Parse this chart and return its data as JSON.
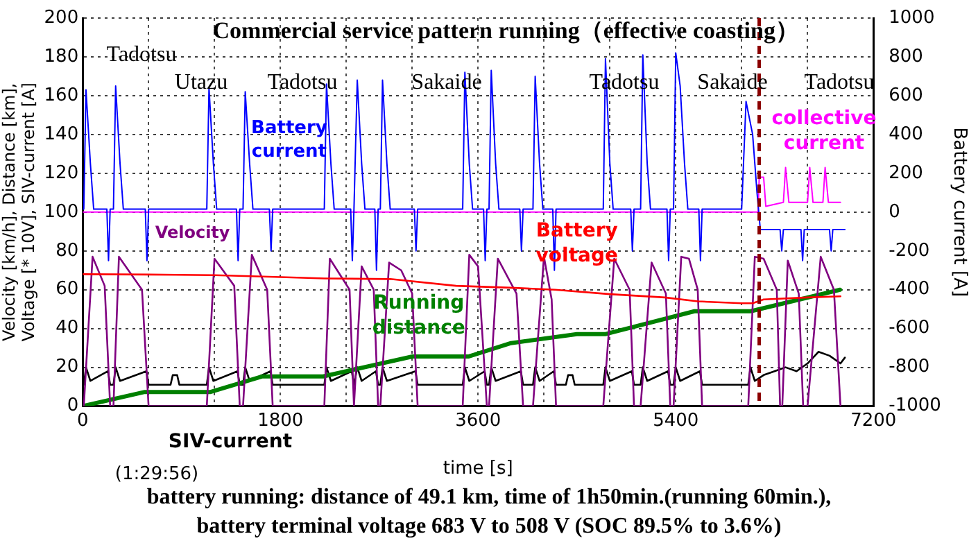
{
  "chart_data": {
    "type": "line",
    "title": "Commercial service pattern running（effective coasting）",
    "xlabel": "time [s]",
    "ylabel": "Velocity [km/h], Distance [km], Voltage [* 10V], SIV-current [A]",
    "y2label": "Battery current [A]",
    "xlim": [
      0,
      7200
    ],
    "xticks": [
      0,
      {
        "value": 600,
        "label": null
      },
      {
        "value": 1200,
        "label": null
      },
      1800,
      {
        "value": 2400,
        "label": null
      },
      {
        "value": 3000,
        "label": null
      },
      3600,
      {
        "value": 4200,
        "label": null
      },
      {
        "value": 4800,
        "label": null
      },
      5400,
      {
        "value": 6000,
        "label": null
      },
      {
        "value": 6600,
        "label": null
      },
      7200
    ],
    "ylim": [
      0,
      200
    ],
    "yticks": [
      0,
      20,
      40,
      60,
      80,
      100,
      120,
      140,
      160,
      180,
      200
    ],
    "y2lim": [
      -1000,
      1000
    ],
    "y2ticks": [
      -1000,
      -800,
      -600,
      -400,
      -200,
      0,
      200,
      400,
      600,
      800,
      1000
    ],
    "grid": true,
    "legend": false,
    "marker": "none",
    "line_style": "solid",
    "ref_lines": [
      {
        "axis": "x",
        "value": 6160,
        "color": "#8b0000",
        "line_style": "dashed"
      }
    ],
    "annotations": [
      "Tadotsu",
      "Utazu",
      "Tadotsu",
      "Sakaide",
      "Tadotsu",
      "Sakaide",
      "Tadotsu",
      "(1:29:56)",
      "battery running: distance of 49.1 km, time of 1h50min.(running 60min.),",
      "battery terminal voltage 683 V to 508 V (SOC 89.5% to 3.6%)"
    ],
    "series": [
      {
        "name": "Battery current",
        "color": "#0000ff",
        "axis": "y2",
        "x": [
          0,
          10,
          30,
          70,
          100,
          220,
          235,
          250,
          280,
          300,
          340,
          370,
          570,
          585,
          600,
          1130,
          1150,
          1190,
          1220,
          1400,
          1415,
          1430,
          1460,
          1480,
          1520,
          1550,
          1700,
          1715,
          1730,
          2200,
          2220,
          2260,
          2290,
          2440,
          2455,
          2470,
          2480,
          2500,
          2540,
          2570,
          2660,
          2675,
          2690,
          2710,
          2730,
          2770,
          2800,
          3020,
          3035,
          3050,
          3460,
          3480,
          3520,
          3550,
          3650,
          3665,
          3680,
          3700,
          3720,
          3760,
          3790,
          3980,
          3995,
          4010,
          4100,
          4120,
          4160,
          4190,
          4280,
          4295,
          4310,
          4740,
          4760,
          4800,
          4830,
          4990,
          5005,
          5020,
          5080,
          5100,
          5140,
          5170,
          5320,
          5335,
          5350,
          5380,
          5400,
          5440,
          5480,
          5510,
          5610,
          5625,
          5640,
          6000,
          6040,
          6100,
          6140,
          6170,
          6350,
          6365,
          6380,
          6540,
          6555,
          6570,
          6800,
          6815,
          6830,
          6940
        ],
        "values": [
          15,
          15,
          630,
          250,
          15,
          15,
          -250,
          15,
          15,
          650,
          250,
          15,
          15,
          -250,
          15,
          15,
          640,
          250,
          15,
          15,
          -250,
          15,
          15,
          620,
          250,
          15,
          15,
          -200,
          15,
          15,
          660,
          250,
          15,
          15,
          -250,
          15,
          15,
          680,
          250,
          15,
          15,
          -300,
          15,
          15,
          680,
          250,
          15,
          15,
          -200,
          15,
          15,
          720,
          250,
          15,
          15,
          -250,
          15,
          15,
          730,
          250,
          15,
          15,
          -200,
          15,
          15,
          700,
          250,
          15,
          15,
          -300,
          15,
          15,
          790,
          250,
          15,
          15,
          -200,
          15,
          15,
          810,
          250,
          15,
          15,
          -250,
          15,
          15,
          820,
          650,
          250,
          15,
          15,
          -250,
          15,
          15,
          570,
          400,
          100,
          -90,
          -90,
          -200,
          -90,
          -90,
          -250,
          -90,
          -90,
          -200,
          -90,
          -90
        ]
      },
      {
        "name": "collective current",
        "color": "#ff00ff",
        "axis": "y2",
        "x": [
          0,
          6150,
          6160,
          6200,
          6220,
          6380,
          6400,
          6430,
          6600,
          6620,
          6650,
          6740,
          6760,
          6790,
          6900
        ],
        "values": [
          0,
          0,
          180,
          180,
          30,
          50,
          230,
          50,
          50,
          230,
          50,
          50,
          230,
          50,
          50
        ]
      },
      {
        "name": "Battery voltage",
        "color": "#ff0000",
        "x": [
          0,
          600,
          1200,
          1800,
          2200,
          2800,
          3400,
          3900,
          4300,
          4800,
          5300,
          5600,
          6000,
          6100,
          6200,
          6600,
          6900
        ],
        "values": [
          68,
          67.8,
          67.5,
          66.5,
          65.8,
          65.5,
          62,
          61,
          60,
          57.7,
          56,
          54,
          53,
          53,
          55,
          56,
          56.6
        ]
      },
      {
        "name": "Velocity",
        "color": "#800080",
        "x": [
          10,
          90,
          200,
          250,
          280,
          330,
          540,
          600,
          1130,
          1200,
          1380,
          1430,
          1460,
          1540,
          1680,
          1730,
          2200,
          2250,
          2430,
          2470,
          2480,
          2540,
          2650,
          2690,
          2710,
          2790,
          2900,
          3000,
          3050,
          3460,
          3520,
          3600,
          3680,
          3700,
          3780,
          3950,
          4010,
          4100,
          4200,
          4270,
          4310,
          4740,
          4840,
          4980,
          5020,
          5080,
          5180,
          5310,
          5350,
          5380,
          5450,
          5520,
          5600,
          5640,
          6060,
          6120,
          6200,
          6320,
          6350,
          6370,
          6420,
          6520,
          6560,
          6600,
          6720,
          6840,
          6900
        ],
        "values": [
          0,
          77,
          62,
          0,
          0,
          77,
          60,
          0,
          0,
          76,
          62,
          0,
          0,
          78,
          60,
          0,
          0,
          76,
          60,
          0,
          0,
          72,
          60,
          0,
          0,
          74,
          70,
          58,
          0,
          0,
          78,
          72,
          0,
          0,
          76,
          58,
          0,
          0,
          77,
          55,
          0,
          0,
          76,
          60,
          0,
          0,
          74,
          58,
          0,
          0,
          77,
          76,
          60,
          0,
          0,
          77,
          76,
          60,
          0,
          0,
          75,
          58,
          0,
          0,
          77,
          60,
          0
        ]
      },
      {
        "name": "Running distance",
        "color": "#008000",
        "x": [
          0,
          565,
          1164,
          1632,
          2190,
          3003,
          3516,
          3900,
          4500,
          4757,
          5570,
          6083,
          6896
        ],
        "values": [
          0,
          7.3,
          7.3,
          15.3,
          15.3,
          25.6,
          25.6,
          32.5,
          37.1,
          37.1,
          48.9,
          48.9,
          60
        ]
      },
      {
        "name": "SIV-current",
        "color": "#000000",
        "x": [
          0,
          10,
          30,
          70,
          230,
          250,
          280,
          300,
          340,
          580,
          600,
          800,
          820,
          860,
          880,
          1130,
          1150,
          1190,
          1410,
          1430,
          1460,
          1480,
          1520,
          1710,
          1730,
          2200,
          2220,
          2260,
          2450,
          2470,
          2480,
          2500,
          2540,
          2670,
          2690,
          2710,
          2730,
          2770,
          3030,
          3050,
          3460,
          3480,
          3520,
          3660,
          3680,
          3700,
          3720,
          3760,
          3990,
          4010,
          4100,
          4120,
          4160,
          4290,
          4310,
          4400,
          4420,
          4460,
          4480,
          4740,
          4760,
          4800,
          5000,
          5020,
          5080,
          5100,
          5140,
          5330,
          5350,
          5380,
          5400,
          5440,
          5620,
          5640,
          6060,
          6080,
          6120,
          6200,
          6300,
          6400,
          6500,
          6600,
          6700,
          6800,
          6900,
          6940
        ],
        "values": [
          11,
          11,
          20,
          13,
          18,
          11,
          11,
          20,
          13,
          18,
          11,
          11,
          16,
          16,
          11,
          11,
          20,
          13,
          18,
          11,
          11,
          20,
          13,
          18,
          11,
          11,
          20,
          13,
          18,
          11,
          11,
          20,
          13,
          18,
          11,
          11,
          20,
          13,
          18,
          11,
          11,
          20,
          13,
          18,
          11,
          11,
          20,
          13,
          18,
          11,
          11,
          20,
          13,
          18,
          11,
          11,
          16,
          16,
          11,
          11,
          20,
          13,
          18,
          11,
          11,
          20,
          13,
          18,
          11,
          11,
          20,
          13,
          18,
          11,
          11,
          20,
          13,
          16,
          18,
          20,
          18,
          22,
          28,
          26,
          22,
          25
        ]
      }
    ]
  }
}
